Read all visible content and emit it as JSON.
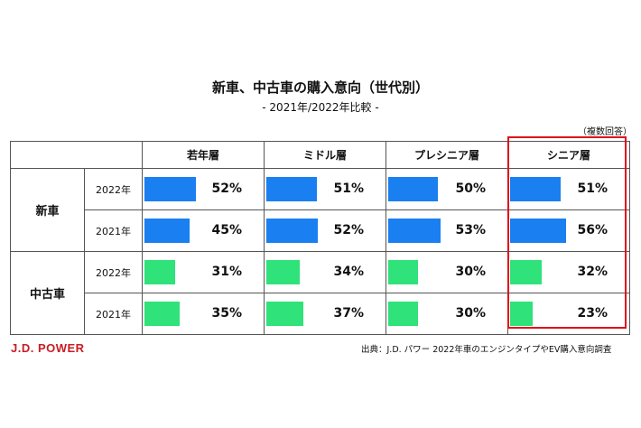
{
  "title": "新車、中古車の購入意向（世代別）",
  "subtitle": "- 2021年/2022年比較 -",
  "note": "（複数回答）",
  "source": "出典：J.D. パワー 2022年車のエンジンタイプやEV購入意向調査",
  "logo": "J.D. POWER",
  "colors": {
    "new_car_bar": "#1a7ff0",
    "used_car_bar": "#2fe27a",
    "highlight_border": "#e0101a",
    "logo": "#c81d24"
  },
  "chart_data": {
    "type": "table",
    "title": "新車、中古車の購入意向（世代別）",
    "subtitle": "- 2021年/2022年比較 -",
    "columns": [
      "若年層",
      "ミドル層",
      "プレシニア層",
      "シニア層"
    ],
    "highlighted_column": "シニア層",
    "groups": [
      {
        "name": "新車",
        "rows": [
          {
            "year": "2022年",
            "values": [
              52,
              51,
              50,
              51
            ],
            "labels": [
              "52%",
              "51%",
              "50%",
              "51%"
            ]
          },
          {
            "year": "2021年",
            "values": [
              45,
              52,
              53,
              56
            ],
            "labels": [
              "45%",
              "52%",
              "53%",
              "56%"
            ]
          }
        ]
      },
      {
        "name": "中古車",
        "rows": [
          {
            "year": "2022年",
            "values": [
              31,
              34,
              30,
              32
            ],
            "labels": [
              "31%",
              "34%",
              "30%",
              "32%"
            ]
          },
          {
            "year": "2021年",
            "values": [
              35,
              37,
              30,
              23
            ],
            "labels": [
              "35%",
              "37%",
              "30%",
              "23%"
            ]
          }
        ]
      }
    ]
  }
}
